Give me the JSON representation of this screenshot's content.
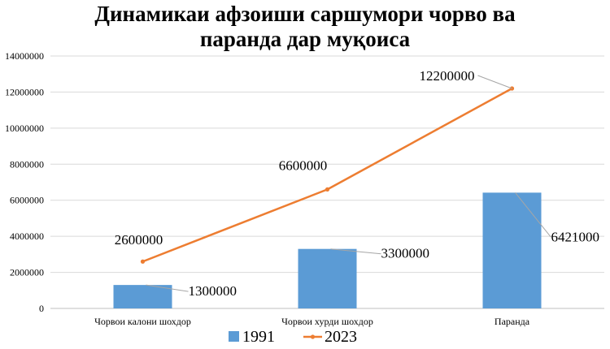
{
  "chart_data": {
    "type": "bar",
    "title_lines": [
      "Динамикаи афзоиши саршумори чорво ва",
      "паранда дар муқоиса"
    ],
    "categories": [
      "Чорвои калони шохдор",
      "Чорвои хурди шохдор",
      "Паранда"
    ],
    "series": [
      {
        "name": "1991",
        "type": "bar",
        "values": [
          1300000,
          3300000,
          6421000
        ],
        "color": "#5b9bd5"
      },
      {
        "name": "2023",
        "type": "line",
        "values": [
          2600000,
          6600000,
          12200000
        ],
        "color": "#ed7d31"
      }
    ],
    "data_labels": {
      "1991": [
        "1300000",
        "3300000",
        "6421000"
      ],
      "2023": [
        "2600000",
        "6600000",
        "12200000"
      ]
    },
    "ylim": [
      0,
      14000000
    ],
    "yticks": [
      0,
      2000000,
      4000000,
      6000000,
      8000000,
      10000000,
      12000000,
      14000000
    ],
    "ytick_labels": [
      "0",
      "2000000",
      "4000000",
      "6000000",
      "8000000",
      "10000000",
      "12000000",
      "14000000"
    ],
    "grid": true,
    "legend_position": "bottom",
    "colors": {
      "gridline": "#d9d9d9",
      "axis": "#bfbfbf",
      "leader": "#a6a6a6"
    }
  }
}
